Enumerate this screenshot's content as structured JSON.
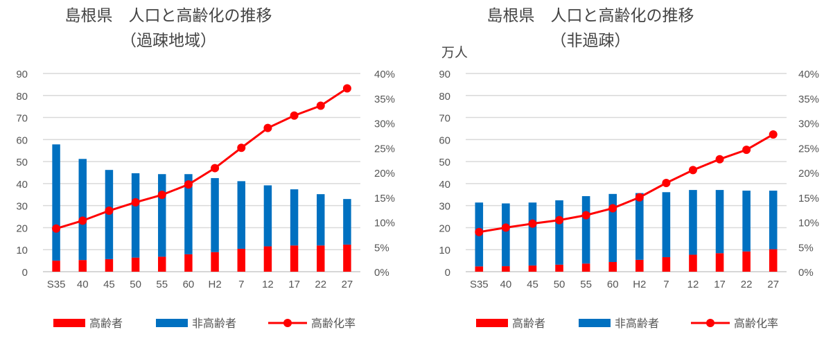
{
  "chart_data": [
    {
      "type": "bar",
      "stacked": true,
      "title": "島根県　人口と高齢化の推移",
      "subtitle": "（過疎地域）",
      "ylabel": "",
      "categories": [
        "S35",
        "40",
        "45",
        "50",
        "55",
        "60",
        "H2",
        "7",
        "12",
        "17",
        "22",
        "27"
      ],
      "ylim": [
        0,
        90
      ],
      "yticks": [
        "0",
        "10",
        "20",
        "30",
        "40",
        "50",
        "60",
        "70",
        "80",
        "90"
      ],
      "y2lim": [
        0,
        40
      ],
      "y2ticks": [
        "0%",
        "5%",
        "10%",
        "15%",
        "20%",
        "25%",
        "30%",
        "35%",
        "40%"
      ],
      "grid": true,
      "legend": "bottom",
      "series": [
        {
          "name": "高齢者",
          "type": "bar",
          "color": "#ff0000",
          "values": [
            5.0,
            5.3,
            5.7,
            6.4,
            6.8,
            7.9,
            8.9,
            10.4,
            11.5,
            11.9,
            11.9,
            12.3
          ]
        },
        {
          "name": "非高齢者",
          "type": "bar",
          "color": "#0070c0",
          "values": [
            52.8,
            45.9,
            40.5,
            38.3,
            37.5,
            36.4,
            33.6,
            30.7,
            27.7,
            25.5,
            23.3,
            20.7
          ]
        },
        {
          "name": "高齢化率",
          "type": "line",
          "axis": "right",
          "color": "#ff0000",
          "values": [
            8.7,
            10.3,
            12.3,
            14.0,
            15.5,
            17.6,
            20.9,
            25.0,
            29.0,
            31.5,
            33.5,
            37.0
          ]
        }
      ]
    },
    {
      "type": "bar",
      "stacked": true,
      "title": "島根県　人口と高齢化の推移",
      "subtitle": "（非過疎）",
      "ylabel": "万人",
      "categories": [
        "S35",
        "40",
        "45",
        "50",
        "55",
        "60",
        "H2",
        "7",
        "12",
        "17",
        "22",
        "27"
      ],
      "ylim": [
        0,
        90
      ],
      "yticks": [
        "0",
        "10",
        "20",
        "30",
        "40",
        "50",
        "60",
        "70",
        "80",
        "90"
      ],
      "y2lim": [
        0,
        40
      ],
      "y2ticks": [
        "0%",
        "5%",
        "10%",
        "15%",
        "20%",
        "25%",
        "30%",
        "35%",
        "40%"
      ],
      "grid": true,
      "legend": "bottom",
      "series": [
        {
          "name": "高齢者",
          "type": "bar",
          "color": "#ff0000",
          "values": [
            2.4,
            2.5,
            2.8,
            3.2,
            3.7,
            4.4,
            5.4,
            6.6,
            7.7,
            8.4,
            9.2,
            10.2
          ]
        },
        {
          "name": "非高齢者",
          "type": "bar",
          "color": "#0070c0",
          "values": [
            29.0,
            28.5,
            28.6,
            29.2,
            30.6,
            30.9,
            30.3,
            29.5,
            29.4,
            28.7,
            27.6,
            26.6
          ]
        },
        {
          "name": "高齢化率",
          "type": "line",
          "axis": "right",
          "color": "#ff0000",
          "values": [
            8.0,
            8.9,
            9.7,
            10.4,
            11.4,
            12.8,
            15.0,
            17.9,
            20.5,
            22.7,
            24.6,
            27.7
          ]
        }
      ]
    }
  ]
}
